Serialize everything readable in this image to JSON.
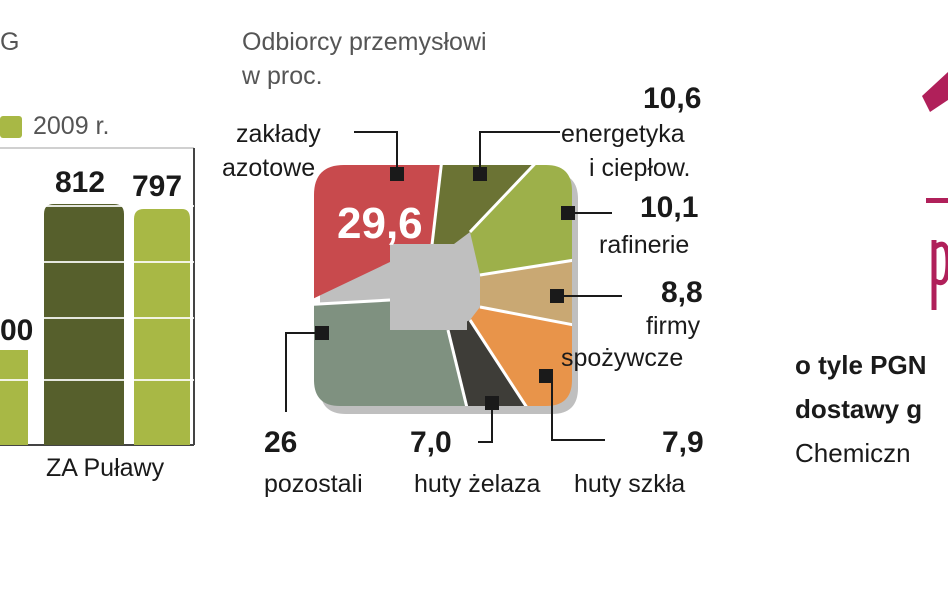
{
  "left_chart": {
    "title_fragment": "G",
    "legend_label": "2009 r.",
    "legend_color": "#a8b845",
    "bar_value_left": "00",
    "bar_values": [
      "812",
      "797"
    ],
    "category": "ZA Puławy",
    "colors": {
      "dark": "#565f2c",
      "light": "#a8b845"
    }
  },
  "chart_data": {
    "type": "pie",
    "title": "Odbiorcy przemysłowi",
    "subtitle": "w proc.",
    "slices": [
      {
        "label": "zakłady azotowe",
        "value": "29,6",
        "num": 29.6,
        "color": "#c84a4d"
      },
      {
        "label": "energetyka i ciepłow.",
        "value": "10,6",
        "num": 10.6,
        "color": "#6b7334"
      },
      {
        "label": "rafinerie",
        "value": "10,1",
        "num": 10.1,
        "color": "#9db04a"
      },
      {
        "label": "firmy spożywcze",
        "value": "8,8",
        "num": 8.8,
        "color": "#c9a873"
      },
      {
        "label": "huty szkła",
        "value": "7,9",
        "num": 7.9,
        "color": "#e8944a"
      },
      {
        "label": "huty żelaza",
        "value": "7,0",
        "num": 7.0,
        "color": "#3e3d38"
      },
      {
        "label": "pozostali",
        "value": "26",
        "num": 26,
        "color": "#7f9180"
      }
    ]
  },
  "labels": {
    "zaklady_line1": "zakłady",
    "zaklady_line2": "azotowe",
    "energetyka_line1": "energetyka",
    "energetyka_line2": "i ciepłow.",
    "rafinerie": "rafinerie",
    "firmy_line1": "firmy",
    "firmy_line2": "spożywcze",
    "huty_szkla": "huty szkła",
    "huty_zelaza": "huty żelaza",
    "pozostali": "pozostali"
  },
  "right_panel": {
    "line1_a": "o tyle ",
    "line1_b": "PGN",
    "line2": "dostawy g",
    "line3": "Chemiczn",
    "accent_color": "#b0205a"
  }
}
